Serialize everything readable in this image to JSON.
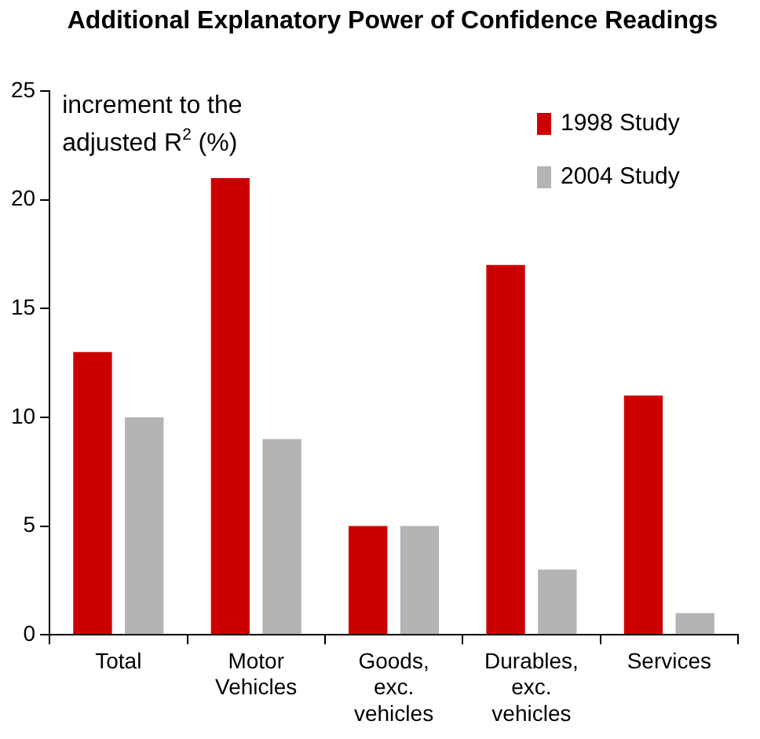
{
  "chart_data": {
    "type": "bar",
    "title": "Additional Explanatory Power of Confidence Readings",
    "annotations": [
      "increment to the adjusted R$^{2}$ (%)"
    ],
    "categories": [
      "Total",
      "Motor Vehicles",
      "Goods, exc. vehicles",
      "Durables, exc. vehicles",
      "Services"
    ],
    "series": [
      {
        "name": "1998 Study",
        "color": "#cc0000",
        "values": [
          13,
          21,
          5,
          17,
          11
        ]
      },
      {
        "name": "2004 Study",
        "color": "#b4b4b4",
        "values": [
          10,
          9,
          5,
          3,
          1
        ]
      }
    ],
    "ylim": [
      0,
      25
    ],
    "yticks": [
      0,
      5,
      10,
      15,
      20,
      25
    ],
    "grid": false,
    "legend": "top right"
  }
}
